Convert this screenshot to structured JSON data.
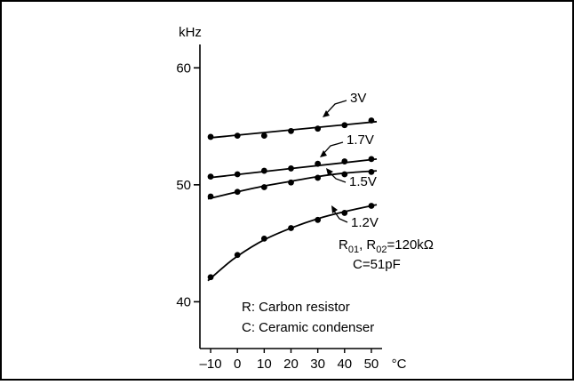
{
  "chart_data": {
    "type": "line",
    "title": "",
    "xlabel": "°C",
    "ylabel": "kHz",
    "xlim": [
      -14,
      54
    ],
    "ylim": [
      36,
      62
    ],
    "xticks": [
      -10,
      0,
      10,
      20,
      30,
      40,
      50
    ],
    "xtick_labels": [
      "–10",
      "0",
      "10",
      "20",
      "30",
      "40",
      "50"
    ],
    "yticks": [
      40,
      50,
      60
    ],
    "ytick_labels": [
      "40",
      "50",
      "60"
    ],
    "series": [
      {
        "name": "3V",
        "x": [
          -10,
          0,
          10,
          20,
          30,
          40,
          50
        ],
        "y": [
          54.1,
          54.2,
          54.2,
          54.6,
          54.8,
          55.1,
          55.5
        ],
        "fit": [
          [
            -11,
            54.0
          ],
          [
            52,
            55.4
          ]
        ]
      },
      {
        "name": "1.7V",
        "x": [
          -10,
          0,
          10,
          20,
          30,
          40,
          50
        ],
        "y": [
          50.7,
          50.9,
          51.2,
          51.4,
          51.8,
          52.0,
          52.2
        ],
        "fit": [
          [
            -11,
            50.6
          ],
          [
            52,
            52.2
          ]
        ]
      },
      {
        "name": "1.5V",
        "x": [
          -10,
          0,
          10,
          20,
          30,
          40,
          50
        ],
        "y": [
          49.0,
          49.4,
          49.8,
          50.2,
          50.6,
          50.9,
          51.1
        ],
        "fit": [
          [
            -11,
            48.8
          ],
          [
            0,
            49.4
          ],
          [
            10,
            49.9
          ],
          [
            20,
            50.3
          ],
          [
            30,
            50.7
          ],
          [
            40,
            51.0
          ],
          [
            52,
            51.2
          ]
        ]
      },
      {
        "name": "1.2V",
        "x": [
          -10,
          0,
          10,
          20,
          30,
          40,
          50
        ],
        "y": [
          42.1,
          44.0,
          45.4,
          46.3,
          47.0,
          47.6,
          48.2
        ],
        "fit": [
          [
            -11,
            41.8
          ],
          [
            -5,
            43.0
          ],
          [
            0,
            43.9
          ],
          [
            10,
            45.3
          ],
          [
            20,
            46.3
          ],
          [
            30,
            47.1
          ],
          [
            40,
            47.7
          ],
          [
            52,
            48.3
          ]
        ]
      }
    ],
    "annotations": {
      "resistors_prefix": "R",
      "r01_sub": "01",
      "sep": ", R",
      "r02_sub": "02",
      "r02_value": "=120kΩ",
      "capacitor": "C=51pF",
      "legend_r": "R: Carbon resistor",
      "legend_c": "C: Ceramic condenser"
    }
  }
}
